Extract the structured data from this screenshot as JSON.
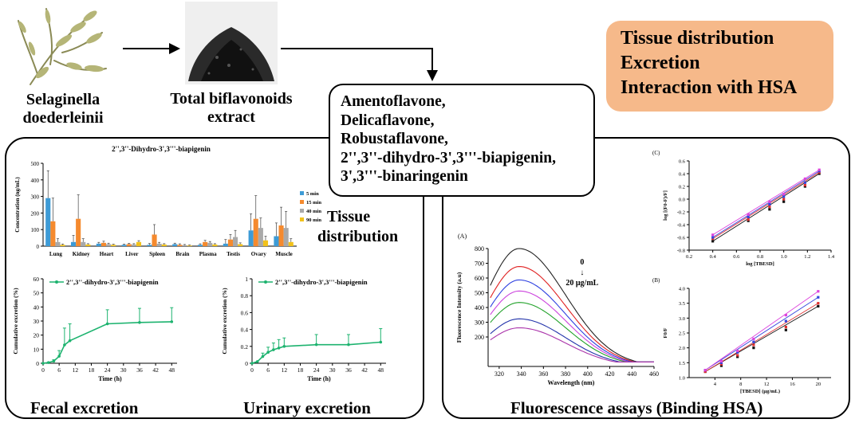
{
  "flow": {
    "plant_label": [
      "Selaginella",
      "doederleinii"
    ],
    "extract_label": [
      "Total biflavonoids",
      "extract"
    ],
    "compounds": [
      "Amentoflavone,",
      "Delicaflavone,",
      "Robustaflavone,",
      "2'',3''-dihydro-3',3'''-biapigenin,",
      "3',3'''-binaringenin"
    ],
    "topics": [
      "Tissue distribution",
      "Excretion",
      "Interaction with HSA"
    ]
  },
  "panels": {
    "tissue_label": [
      "Tissue",
      "distribution"
    ],
    "fecal_label": "Fecal excretion",
    "urinary_label": "Urinary excretion",
    "fluorescence_label": "Fluorescence assays (Binding HSA)"
  },
  "colors": {
    "topic_box": "#f6b98a",
    "green": "#1db36f",
    "bar_5": "#3d9bd6",
    "bar_15": "#f58a2e",
    "bar_40": "#a9a9a9",
    "bar_90": "#f2c21b"
  },
  "chart_data": [
    {
      "type": "bar",
      "title": "2'',3''-Dihydro-3',3'''-biapigenin",
      "ylabel": "Concentration (ng/mL)",
      "ylim": [
        0,
        500
      ],
      "yticks": [
        "500",
        "400",
        "300",
        "200",
        "100",
        "0"
      ],
      "categories": [
        "Lung",
        "Kidney",
        "Heart",
        "Liver",
        "Spleen",
        "Brain",
        "Plasma",
        "Testis",
        "Ovary",
        "Muscle"
      ],
      "series": [
        {
          "name": "5 min",
          "values": [
            290,
            25,
            15,
            8,
            8,
            12,
            8,
            15,
            95,
            60
          ],
          "errors": [
            165,
            40,
            8,
            4,
            8,
            6,
            6,
            25,
            100,
            80
          ]
        },
        {
          "name": "15 min",
          "values": [
            150,
            165,
            20,
            12,
            70,
            8,
            25,
            40,
            165,
            125
          ],
          "errors": [
            140,
            145,
            10,
            5,
            60,
            6,
            10,
            30,
            140,
            110
          ]
        },
        {
          "name": "40 min",
          "values": [
            25,
            25,
            12,
            10,
            15,
            6,
            20,
            55,
            110,
            110
          ],
          "errors": [
            20,
            20,
            6,
            5,
            8,
            4,
            8,
            40,
            60,
            100
          ]
        },
        {
          "name": "90 min",
          "values": [
            8,
            10,
            8,
            25,
            10,
            4,
            10,
            12,
            35,
            25
          ],
          "errors": [
            5,
            5,
            4,
            8,
            5,
            3,
            5,
            8,
            25,
            20
          ]
        }
      ],
      "legend": "right"
    },
    {
      "type": "line",
      "series_name": "2'',3''-dihydro-3',3'''-biapigenin",
      "xlabel": "Time (h)",
      "ylabel": "Cumulative excretion (%)",
      "xlim": [
        0,
        50
      ],
      "ylim": [
        0,
        60
      ],
      "xticks": [
        "0",
        "6",
        "12",
        "18",
        "24",
        "30",
        "36",
        "42",
        "48"
      ],
      "yticks": [
        "60",
        "50",
        "40",
        "30",
        "20",
        "10",
        "0"
      ],
      "x": [
        0,
        2,
        4,
        6,
        8,
        10,
        24,
        36,
        48
      ],
      "y": [
        0,
        0.5,
        1.5,
        5,
        13,
        16,
        28,
        29,
        29.5
      ],
      "errors": [
        0,
        0,
        1,
        4,
        12,
        12,
        10,
        10,
        10
      ]
    },
    {
      "type": "line",
      "series_name": "2'',3''-dihydro-3',3'''-biapigenin",
      "xlabel": "Time (h)",
      "ylabel": "Cumulative excretion (%)",
      "xlim": [
        0,
        50
      ],
      "ylim": [
        0,
        1
      ],
      "xticks": [
        "0",
        "6",
        "12",
        "18",
        "24",
        "30",
        "36",
        "42",
        "48"
      ],
      "yticks": [
        "1",
        "0.8",
        "0.6",
        "0.4",
        "0.2",
        "0"
      ],
      "x": [
        0,
        2,
        4,
        6,
        8,
        10,
        12,
        24,
        36,
        48
      ],
      "y": [
        0,
        0.02,
        0.08,
        0.13,
        0.16,
        0.18,
        0.2,
        0.22,
        0.22,
        0.25
      ],
      "errors": [
        0,
        0,
        0.04,
        0.06,
        0.08,
        0.1,
        0.1,
        0.12,
        0.12,
        0.16
      ]
    },
    {
      "type": "line",
      "panel": "(A)",
      "xlabel": "Wavelength (nm)",
      "ylabel": "Fluorescence Intensity (a.u)",
      "xlim": [
        310,
        460
      ],
      "ylim": [
        0,
        800
      ],
      "xticks": [
        "320",
        "340",
        "360",
        "380",
        "400",
        "420",
        "440",
        "460"
      ],
      "yticks": [
        "800",
        "700",
        "600",
        "500",
        "400",
        "300",
        "200"
      ],
      "annotation": [
        "0",
        "↓",
        "20 μg/mL"
      ],
      "peak_x": 338,
      "series": [
        {
          "peak": 800,
          "color": "#222222"
        },
        {
          "peak": 678,
          "color": "#e02020"
        },
        {
          "peak": 587,
          "color": "#2c3fe0"
        },
        {
          "peak": 512,
          "color": "#cc44dd"
        },
        {
          "peak": 434,
          "color": "#22a22a"
        },
        {
          "peak": 323,
          "color": "#2233aa"
        },
        {
          "peak": 262,
          "color": "#aa33aa"
        }
      ]
    },
    {
      "type": "scatter",
      "panel": "(C)",
      "xlabel": "log [TBESD]",
      "ylabel": "log [(F0-F)/F]",
      "xlim": [
        0.2,
        1.4
      ],
      "ylim": [
        -0.8,
        0.6
      ],
      "xticks": [
        "0.2",
        "0.4",
        "0.6",
        "0.8",
        "1.0",
        "1.2",
        "1.4"
      ],
      "yticks": [
        "0.6",
        "0.4",
        "0.2",
        "0.0",
        "-0.2",
        "-0.4",
        "-0.6",
        "-0.8"
      ],
      "series": [
        {
          "color": "#111111",
          "x": [
            0.4,
            0.7,
            0.88,
            1.0,
            1.18,
            1.3
          ],
          "y": [
            -0.66,
            -0.34,
            -0.16,
            -0.04,
            0.2,
            0.4
          ]
        },
        {
          "color": "#e03030",
          "x": [
            0.4,
            0.7,
            0.88,
            1.0,
            1.18,
            1.3
          ],
          "y": [
            -0.62,
            -0.32,
            -0.12,
            0.0,
            0.22,
            0.42
          ]
        },
        {
          "color": "#3344dd",
          "x": [
            0.4,
            0.7,
            0.88,
            1.0,
            1.18,
            1.3
          ],
          "y": [
            -0.6,
            -0.28,
            -0.08,
            0.04,
            0.26,
            0.44
          ]
        },
        {
          "color": "#dd44dd",
          "x": [
            0.4,
            0.7,
            0.88,
            1.0,
            1.18,
            1.3
          ],
          "y": [
            -0.56,
            -0.24,
            -0.04,
            0.08,
            0.32,
            0.46
          ]
        }
      ]
    },
    {
      "type": "scatter",
      "panel": "(B)",
      "xlabel": "[TBESD] (μg/mL)",
      "ylabel": "F0/F",
      "xlim": [
        0,
        22
      ],
      "ylim": [
        1.0,
        4.0
      ],
      "xticks": [
        "4",
        "8",
        "12",
        "16",
        "20"
      ],
      "yticks": [
        "4.0",
        "3.5",
        "3.0",
        "2.5",
        "2.0",
        "1.5",
        "1.0"
      ],
      "series": [
        {
          "color": "#111111",
          "x": [
            2.5,
            5,
            7.5,
            10,
            15,
            20
          ],
          "y": [
            1.2,
            1.4,
            1.7,
            2.0,
            2.6,
            3.4
          ]
        },
        {
          "color": "#e03030",
          "x": [
            2.5,
            5,
            7.5,
            10,
            15,
            20
          ],
          "y": [
            1.2,
            1.45,
            1.75,
            2.1,
            2.7,
            3.5
          ]
        },
        {
          "color": "#3344dd",
          "x": [
            2.5,
            5,
            7.5,
            10,
            15,
            20
          ],
          "y": [
            1.25,
            1.5,
            1.85,
            2.2,
            2.9,
            3.7
          ]
        },
        {
          "color": "#dd44dd",
          "x": [
            2.5,
            5,
            7.5,
            10,
            15,
            20
          ],
          "y": [
            1.25,
            1.55,
            1.9,
            2.3,
            3.1,
            3.9
          ]
        }
      ]
    }
  ]
}
